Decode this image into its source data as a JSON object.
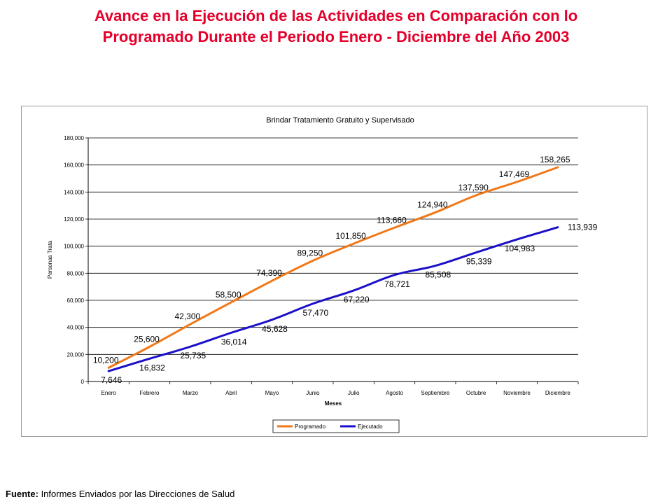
{
  "slide": {
    "title_line1": "Avance en la Ejecución de las Actividades en Comparación con lo",
    "title_line2": "Programado Durante el Periodo Enero - Diciembre del Año 2003",
    "source_label": "Fuente:",
    "source_text": " Informes Enviados por las Direcciones de Salud"
  },
  "colors": {
    "title": "#e4002b",
    "programado": "#f07818",
    "ejecutado": "#1a10c8"
  },
  "chart_data": {
    "type": "line",
    "title": "Brindar Tratamiento Gratuito y Supervisado",
    "xlabel": "Meses",
    "ylabel": "Personas Trata",
    "ylim": [
      0,
      180000
    ],
    "yticks": [
      0,
      20000,
      40000,
      60000,
      80000,
      100000,
      120000,
      140000,
      160000,
      180000
    ],
    "ytick_labels": [
      "0",
      "20,000",
      "40,000",
      "60,000",
      "80,000",
      "100,000",
      "120,000",
      "140,000",
      "160,000",
      "180,000"
    ],
    "grid": true,
    "legend_position": "bottom",
    "categories": [
      "Enero",
      "Febrero",
      "Marzo",
      "Abril",
      "Mayo",
      "Junio",
      "Julio",
      "Agosto",
      "Septiembre",
      "Octubre",
      "Noviembre",
      "Diciembre"
    ],
    "series": [
      {
        "name": "Programado",
        "color": "#f07818",
        "values": [
          10200,
          25600,
          42300,
          58500,
          74390,
          89250,
          101850,
          113660,
          124940,
          137590,
          147469,
          158265
        ],
        "labels": [
          "10,200",
          "25,600",
          "42,300",
          "58,500",
          "74,390",
          "89,250",
          "101,850",
          "113,660",
          "124,940",
          "137,590",
          "147,469",
          "158,265"
        ]
      },
      {
        "name": "Ejecutado",
        "color": "#1a10c8",
        "values": [
          7646,
          16832,
          25735,
          36014,
          45628,
          57470,
          67220,
          78721,
          85508,
          95339,
          104983,
          113939
        ],
        "labels": [
          "7,646",
          "16,832",
          "25,735",
          "36,014",
          "45,628",
          "57,470",
          "67,220",
          "78,721",
          "85,508",
          "95,339",
          "104,983",
          "113,939"
        ]
      }
    ]
  }
}
